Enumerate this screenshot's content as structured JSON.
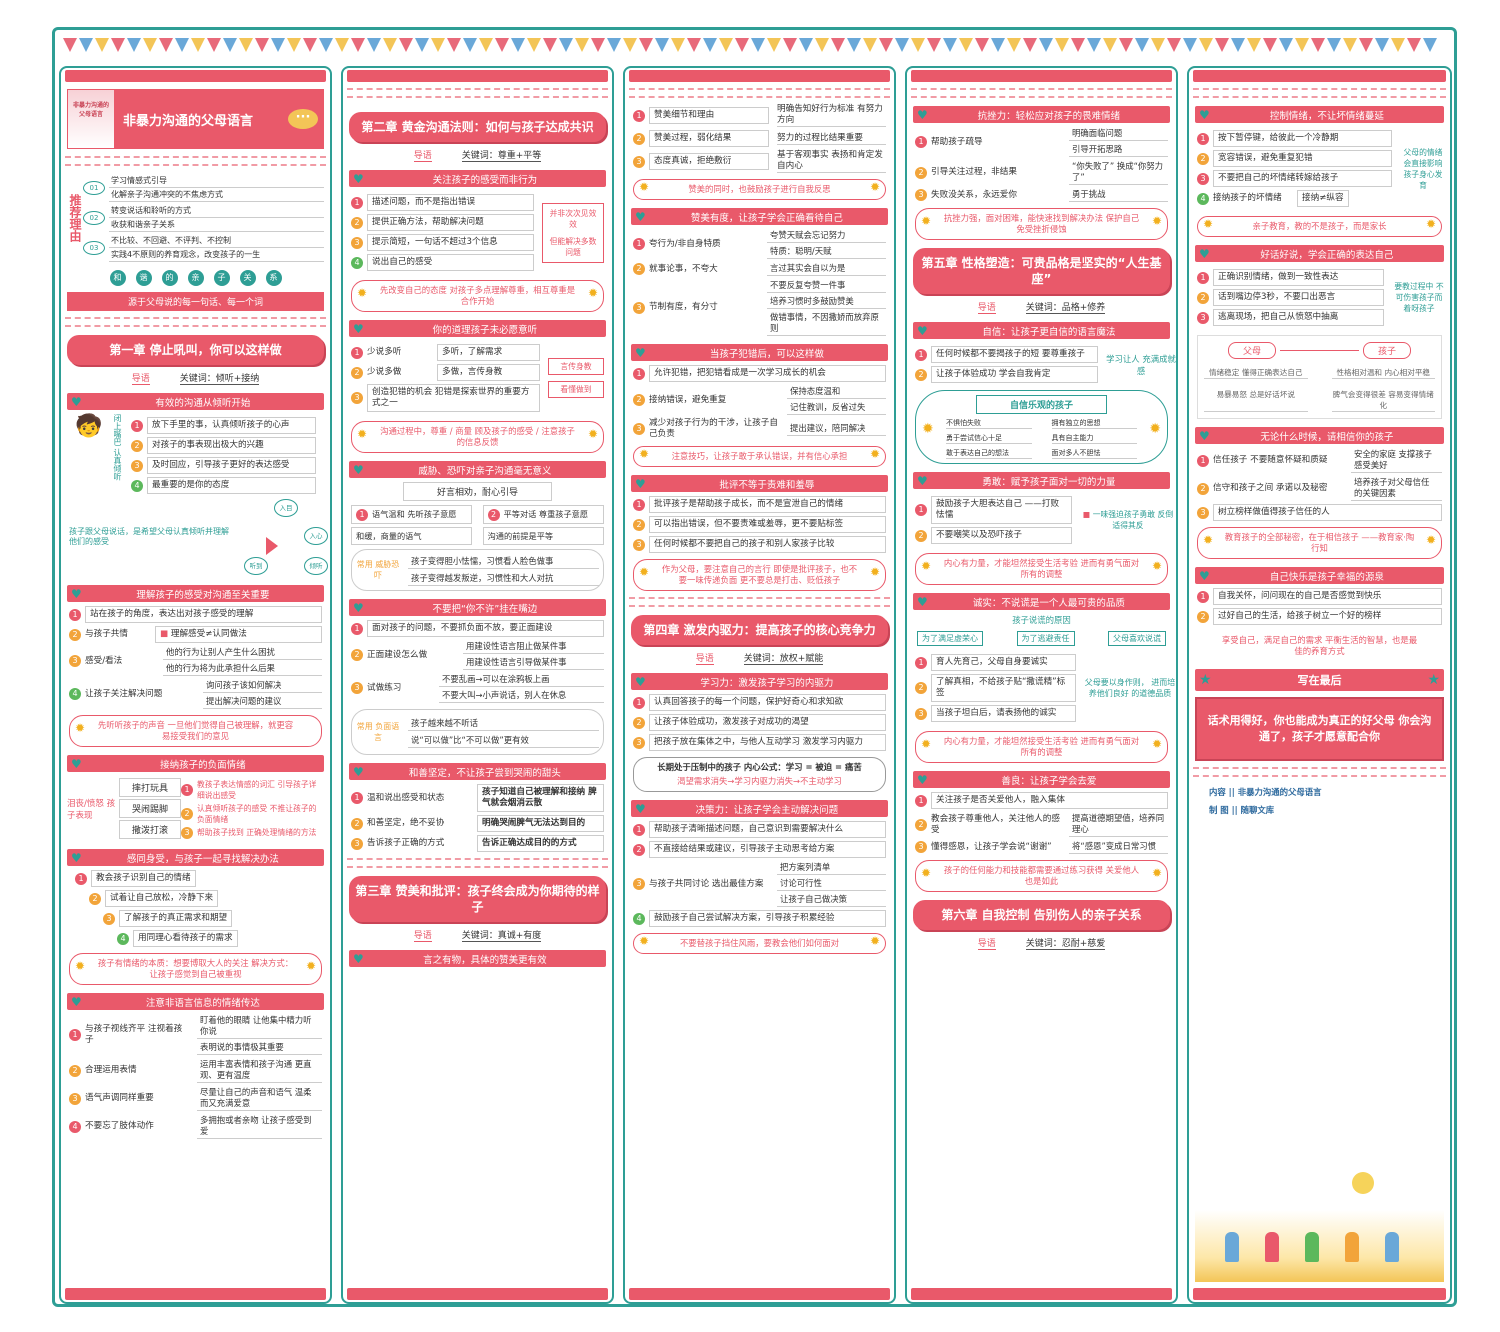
{
  "book_title": "非暴力沟通的父母语言",
  "col1": {
    "rec_label": "推荐理由",
    "rec": [
      {
        "n": "01",
        "items": [
          "学习情感式引导",
          "化解亲子沟通冲突的不焦虑方式"
        ]
      },
      {
        "n": "02",
        "items": [
          "转变说话和聆听的方式",
          "收获和谐亲子关系"
        ]
      },
      {
        "n": "03",
        "items": [
          "不比较、不回避、不评判、不控制",
          "实践4不原则的养育观念，改变孩子的一生"
        ]
      }
    ],
    "pills": [
      "和",
      "谐",
      "的",
      "亲",
      "子",
      "关",
      "系"
    ],
    "banner": "源于父母说的每一句话、每一个词",
    "ch1": "第一章  停止吼叫，你可以这样做",
    "ch1_guide": "导语",
    "ch1_kw": "关键词：倾听+接纳",
    "s1": "有效的沟通从倾听开始",
    "s1_side": "闭上嘴巴 认真倾听",
    "s1_items": [
      "放下手里的事，认真倾听孩子的心声",
      "对孩子的事表现出极大的兴趣",
      "及时回应，引导孩子更好的表达感受",
      "最重要的是你的态度"
    ],
    "s1_note": "孩子跟父母说话，是希望父母认真倾听并理解他们的感受",
    "s1_cycle": [
      "入目",
      "入心",
      "倾听",
      "听到"
    ],
    "s2": "理解孩子的感受对沟通至关重要",
    "s2_items": [
      "站在孩子的角度，表达出对孩子感受的理解",
      "与孩子共情",
      "感受/看法",
      "让孩子关注解决问题"
    ],
    "s2_tip": "理解感受≠认同做法",
    "s2_sub3": [
      "他的行为让别人产生什么困扰",
      "他的行为将为此承担什么后果"
    ],
    "s2_sub4": [
      "询问孩子该如何解决",
      "提出解决问题的建议"
    ],
    "s2_note": "先听听孩子的声音 一旦他们觉得自己被理解，就更容易接受我们的意见",
    "s3": "接纳孩子的负面情绪",
    "s3_left": "泪丧/愤怒 孩子表现",
    "s3_mid": [
      "摔打玩具",
      "哭闹踢脚",
      "撒泼打滚"
    ],
    "s3_right": [
      "教孩子表达情感的词汇 引导孩子详细说出感受",
      "认真倾听孩子的感受 不推让孩子的负面情绪",
      "帮助孩子找到 正确处理情绪的方法"
    ],
    "s4": "感同身受，与孩子一起寻找解决办法",
    "s4_steps": [
      "教会孩子识别自己的情绪",
      "试着让自己放松，冷静下来",
      "了解孩子的真正需求和期望",
      "用同理心看待孩子的需求"
    ],
    "s4_note": "孩子有情绪的本质：想要博取大人的关注 解决方式：让孩子感觉到自己被重视",
    "s5": "注意非语言信息的情绪传达",
    "s5_items": [
      "与孩子视线齐平 注视着孩子",
      "合理运用表情",
      "语气声调同样重要",
      "不要忘了肢体动作"
    ],
    "s5_sub": [
      [
        "盯着他的眼睛 让他集中精力听你说",
        "表明说的事情极其重要"
      ],
      [
        "运用丰富表情和孩子沟通 更直观、更有温度"
      ],
      [
        "尽量让自己的声音和语气 温柔而又充满爱意"
      ],
      [
        "多拥抱或者亲吻 让孩子感受到爱"
      ]
    ]
  },
  "col2": {
    "ch2": "第二章  黄金沟通法则：如何与孩子达成共识",
    "ch2_guide": "导语",
    "ch2_kw": "关键词：尊重+平等",
    "s1": "关注孩子的感受而非行为",
    "s1_items": [
      "描述问题，而不是指出错误",
      "提供正确方法，帮助解决问题",
      "提示简短，一句话不超过3个信息",
      "说出自己的感受"
    ],
    "s1_right": [
      "并非次次见效效",
      "但能解决多数问题"
    ],
    "s1_note": "先改变自己的态度 对孩子多点理解尊重，相互尊重是合作开始",
    "s2": "你的道理孩子未必愿意听",
    "s2_items": [
      "少说多听",
      "少说多做",
      "创造犯错的机会 犯错是探索世界的重要方式之一"
    ],
    "s2_sub": [
      "多听，了解需求",
      "多做，言传身教"
    ],
    "s2_right": [
      "言传身教",
      "看懂做到"
    ],
    "s2_note": "沟通过程中，尊重 / 商量 顾及孩子的感受 / 注意孩子的信息反馈",
    "s3": "威胁、恐吓对亲子沟通毫无意义",
    "s3_top": "好言相劝，耐心引导",
    "s3_two": [
      "语气温和 先听孩子意愿",
      "平等对话 尊重孩子意愿"
    ],
    "s3_two_b": [
      "和缓，商量的语气",
      "沟通的前提是平等"
    ],
    "s3_icon": "常用 威胁恐吓",
    "s3_out": [
      "孩子变得胆小怯懦，习惯看人脸色做事",
      "孩子变得越发叛逆，习惯性和大人对抗"
    ],
    "s4": "不要把“你不许”挂在嘴边",
    "s4_items": [
      "面对孩子的问题，不要抓负面不放，要正面建设",
      "正面建设怎么做",
      "试做练习"
    ],
    "s4_sub2": [
      "用建设性语言阻止做某件事",
      "用建设性语言引导做某件事"
    ],
    "s4_sub3": [
      "不要乱画→可以在涂鸦板上画",
      "不要大叫→小声说话，别人在休息"
    ],
    "s4_icon": "常用 负面语言",
    "s4_out": [
      "孩子越来越不听话",
      "说“可以做”比“不可以做”更有效"
    ],
    "s5": "和善坚定，不让孩子尝到哭闹的甜头",
    "s5_items": [
      "温和说出感受和状态",
      "和善坚定，绝不妥协",
      "告诉孩子正确的方式"
    ],
    "s5_sub": [
      "孩子知道自己被理解和接纳 脾气就会烟消云散",
      "明确哭闹脾气无法达到目的",
      "告诉正确达成目的的方式"
    ],
    "ch3": "第三章  赞美和批评：孩子终会成为你期待的样子",
    "ch3_guide": "导语",
    "ch3_kw": "关键词：真诚+有度",
    "s6": "言之有物，具体的赞美更有效"
  },
  "col3": {
    "s1_items": [
      "赞美细节和理由",
      "赞美过程，弱化结果",
      "态度真诚，拒绝敷衍"
    ],
    "s1_sub": [
      "明确告知好行为标准 有努力方向",
      "努力的过程比结果重要",
      "基于客观事实 表扬和肯定发自内心"
    ],
    "s1_note": "赞美的同时，也鼓励孩子进行自我反思",
    "s2": "赞美有度，让孩子学会正确看待自己",
    "s2_items": [
      "夸行为/非自身特质",
      "就事论事，不夸大",
      "节制有度，有分寸"
    ],
    "s2_sub1": [
      "夸赞天赋会忘记努力",
      "特质：聪明/天赋"
    ],
    "s2_sub2": [
      "言过其实会自以为是"
    ],
    "s2_sub3": [
      "不要反复夸赞一件事",
      "培养习惯时多鼓励赞美",
      "做错事情，不因撒娇而放弃原则"
    ],
    "s3": "当孩子犯错后，可以这样做",
    "s3_items": [
      "允许犯错，把犯错看成是一次学习成长的机会",
      "接纳错误，避免重复",
      "减少对孩子行为的干涉，让孩子自己负责"
    ],
    "s3_sub2": [
      "保持态度温和",
      "记住教训，反省过失"
    ],
    "s3_sub3": [
      "提出建议，陪同解决"
    ],
    "s3_note": "注意技巧，让孩子敢于承认错误，并有信心承担",
    "s4": "批评不等于责难和羞辱",
    "s4_items": [
      "批评孩子是帮助孩子成长，而不是宣泄自己的情绪",
      "可以指出错误，但不要责难或羞辱，更不要贴标签",
      "任何时候都不要把自己的孩子和别人家孩子比较"
    ],
    "s4_note": "作为父母，要注意自己的言行 即使是批评孩子，也不要一味传递负面 更不要总是打击、贬低孩子",
    "ch4": "第四章  激发内驱力：提高孩子的核心竞争力",
    "ch4_guide": "导语",
    "ch4_kw": "关键词：放权+赋能",
    "s5": "学习力：激发孩子学习的内驱力",
    "s5_items": [
      "认真回答孩子的每一个问题，保护好奇心和求知欲",
      "让孩子体验成功，激发孩子对成功的渴望",
      "把孩子放在集体之中，与他人互动学习 激发学习内驱力"
    ],
    "s5_box": "长期处于压制中的孩子 内心公式：学习 = 被迫 = 痛苦",
    "s5_chain": "渴望需求消失→学习内驱力消失→不主动学习",
    "s6": "决策力：让孩子学会主动解决问题",
    "s6_items": [
      "帮助孩子清晰描述问题，自己意识到需要解决什么",
      "不直接给结果或建议，引导孩子主动思考给方案",
      "与孩子共同讨论 选出最佳方案",
      "鼓励孩子自己尝试解决方案，引导孩子积累经验"
    ],
    "s6_sub3": [
      "把方案列清单",
      "讨论可行性",
      "让孩子自己做决策"
    ],
    "s6_note": "不要替孩子挡住风雨，要教会他们如何面对"
  },
  "col4": {
    "s1": "抗挫力：轻松应对孩子的畏难情绪",
    "s1_items": [
      "帮助孩子疏导",
      "引导关注过程，非结果",
      "失败没关系，永远爱你"
    ],
    "s1_sub1": [
      "明确面临问题",
      "引导开拓思路"
    ],
    "s1_sub2": [
      "“你失败了” 换成“你努力了”"
    ],
    "s1_sub3": [
      "勇于挑战"
    ],
    "s1_note": "抗挫力强，面对困难，能快速找到解决办法 保护自己免受挫折侵蚀",
    "ch5": "第五章  性格塑造：可贵品格是坚实的“人生基座”",
    "ch5_guide": "导语",
    "ch5_kw": "关键词：品格+修养",
    "s2": "自信：让孩子更自信的语言魔法",
    "s2_items": [
      "任何时候都不要揭孩子的短 要尊重孩子",
      "让孩子体验成功 学会自我肯定"
    ],
    "s2_right": "学习让人 充满成就感",
    "s2_box": "自信乐观的孩子",
    "s2_grid": [
      "不惧怕失败",
      "拥有独立的思想",
      "勇于尝试信心十足",
      "具有自主能力",
      "敢于表达自己的想法",
      "面对多人不胆怯"
    ],
    "s3": "勇敢：赋予孩子面对一切的力量",
    "s3_items": [
      "鼓励孩子大胆表达自己 ——打败怯懦",
      "不要嘲笑以及恐吓孩子"
    ],
    "s3_right": "一味强迫孩子勇敢 反倒适得其反",
    "s3_note": "内心有力量，才能坦然接受生活考验 进而有勇气面对所有的调整",
    "s4": "诚实：不说谎是一个人最可贵的品质",
    "s4_top": "孩子说谎的原因",
    "s4_reasons": [
      "为了满足虚荣心",
      "为了逃避责任",
      "父母喜欢说谎"
    ],
    "s4_items": [
      "育人先育己，父母自身要诚实",
      "了解真相，不给孩子贴“撒谎精”标签",
      "当孩子坦白后，请表扬他的诚实"
    ],
    "s4_right": "父母要以身作则， 进而培养他们良好 的道德品质",
    "s4_note": "内心有力量，才能坦然接受生活考验 进而有勇气面对所有的调整",
    "s5": "善良：让孩子学会去爱",
    "s5_items": [
      "关注孩子是否关爱他人，融入集体",
      "教会孩子尊重他人，关注他人的感受",
      "懂得感恩，让孩子学会说“谢谢”"
    ],
    "s5_sub": [
      "提高道德期望值，培养同理心",
      "将“感恩”变成日常习惯"
    ],
    "s5_note": "孩子的任何能力和技能都需要通过练习获得 关爱他人也是如此",
    "ch6": "第六章  自我控制 告别伤人的亲子关系",
    "ch6_guide": "导语",
    "ch6_kw": "关键词：忍耐+慈爱"
  },
  "col5": {
    "s1": "控制情绪，不让坏情绪蔓延",
    "s1_items": [
      "按下暂停键，给彼此一个冷静期",
      "宽容错误，避免重复犯错",
      "不要把自己的坏情绪转嫁给孩子",
      "接纳孩子的坏情绪"
    ],
    "s1_tip": "接纳≠纵容",
    "s1_right": "父母的情绪会直接影响孩子身心发育",
    "s1_note": "亲子教育，教的不是孩子，而是家长",
    "s2": "好话好说，学会正确的表达自己",
    "s2_items": [
      "正确识别情绪，做到一致性表达",
      "话到嘴边停3秒，不要口出恶言",
      "逃离现场，把自己从愤怒中抽离"
    ],
    "s2_right": "要教过程中 不可伤害孩子而 着呀孩子",
    "s2_ends": [
      "父母",
      "孩子"
    ],
    "s2_grid": [
      "情绪稳定 懂得正确表达自己",
      "性格相对温和 内心相对平稳",
      "易暴易怒 总是好话坏说",
      "脾气会变得很差 容易变得情绪化"
    ],
    "s3": "无论什么时候，请相信你的孩子",
    "s3_items": [
      "信任孩子 不要随意怀疑和质疑",
      "信守和孩子之间 承诺以及秘密",
      "树立榜样做值得孩子信任的人"
    ],
    "s3_sub": [
      "安全的家庭 支撑孩子感受美好",
      "培养孩子对父母信任 的关键因素"
    ],
    "s3_note": "教育孩子的全部秘密，在于相信孩子 ——教育家·陶行知",
    "s4": "自己快乐是孩子幸福的源泉",
    "s4_items": [
      "自我关怀，问问现在的自己是否感觉到快乐",
      "过好自己的生活，给孩子树立一个好的榜样"
    ],
    "s4_note": "享受自己，满足自己的需求 平衡生活的智慧，也是最佳的养育方式",
    "s5": "写在最后",
    "final": "话术用得好，你也能成为真正的好父母 你会沟通了，孩子才愿意配合你",
    "credit1": "内容 || 非暴力沟通的父母语言",
    "credit2": "制 图 || 随聊文库"
  }
}
